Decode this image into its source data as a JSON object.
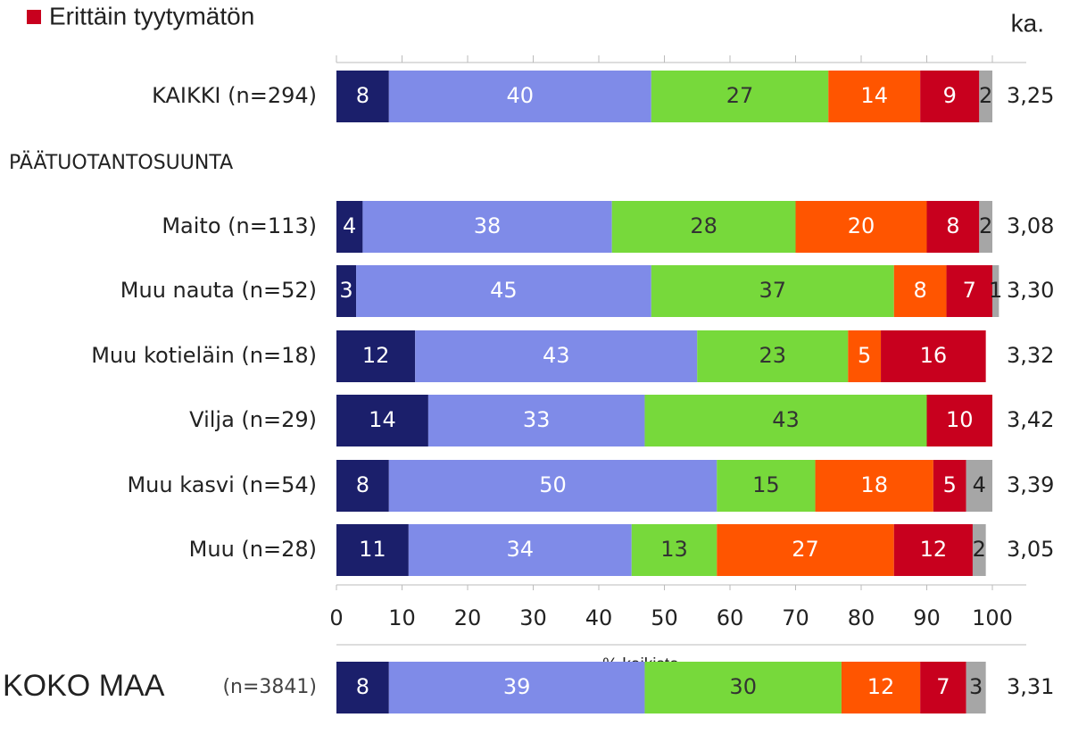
{
  "chart_data": [
    {
      "type": "stacked_bar_horizontal",
      "legend_title": null,
      "average_header": "ka.",
      "section_label": "PÄÄTUOTANTOSUUNTA",
      "categories": [
        "KAIKKI (n=294)",
        "Maito (n=113)",
        "Muu nauta (n=52)",
        "Muu kotieläin (n=18)",
        "Vilja (n=29)",
        "Muu kasvi (n=54)",
        "Muu (n=28)"
      ],
      "series": [
        {
          "color": "#1b1f6b",
          "label_color": "#ffffff",
          "values": [
            8,
            4,
            3,
            12,
            14,
            8,
            11
          ]
        },
        {
          "color": "#7f8be8",
          "label_color": "#ffffff",
          "values": [
            40,
            38,
            45,
            43,
            33,
            50,
            34
          ]
        },
        {
          "color": "#77d93b",
          "label_color": "#333333",
          "values": [
            27,
            28,
            37,
            23,
            43,
            15,
            13
          ]
        },
        {
          "color": "#ff5500",
          "label_color": "#ffffff",
          "values": [
            14,
            20,
            8,
            5,
            null,
            18,
            27
          ]
        },
        {
          "name": "Erittäin tyytymätön",
          "color": "#c8001e",
          "label_color": "#ffffff",
          "values": [
            9,
            8,
            7,
            16,
            10,
            5,
            12
          ]
        },
        {
          "color": "#a6a6a6",
          "label_color": "#222222",
          "values": [
            2,
            2,
            1,
            null,
            null,
            4,
            2
          ]
        }
      ],
      "averages": [
        3.25,
        3.08,
        3.3,
        3.32,
        3.42,
        3.39,
        3.05
      ],
      "average_labels": [
        "3,25",
        "3,08",
        "3,30",
        "3,32",
        "3,42",
        "3,39",
        "3,05"
      ],
      "xlabel": "% kaikista",
      "xlim": [
        0,
        100
      ],
      "xticks": [
        0,
        10,
        20,
        30,
        40,
        50,
        60,
        70,
        80,
        90,
        100
      ],
      "legend": "upper left"
    },
    {
      "type": "stacked_bar_horizontal",
      "categories": [
        "KOKO MAA"
      ],
      "category_notes": [
        "(n=3841)"
      ],
      "series": [
        {
          "color": "#1b1f6b",
          "label_color": "#ffffff",
          "values": [
            8
          ]
        },
        {
          "color": "#7f8be8",
          "label_color": "#ffffff",
          "values": [
            39
          ]
        },
        {
          "color": "#77d93b",
          "label_color": "#333333",
          "values": [
            30
          ]
        },
        {
          "color": "#ff5500",
          "label_color": "#ffffff",
          "values": [
            12
          ]
        },
        {
          "color": "#c8001e",
          "label_color": "#ffffff",
          "values": [
            7
          ]
        },
        {
          "color": "#a6a6a6",
          "label_color": "#222222",
          "values": [
            3
          ]
        }
      ],
      "averages": [
        3.31
      ],
      "average_labels": [
        "3,31"
      ],
      "xlim": [
        0,
        100
      ]
    }
  ]
}
